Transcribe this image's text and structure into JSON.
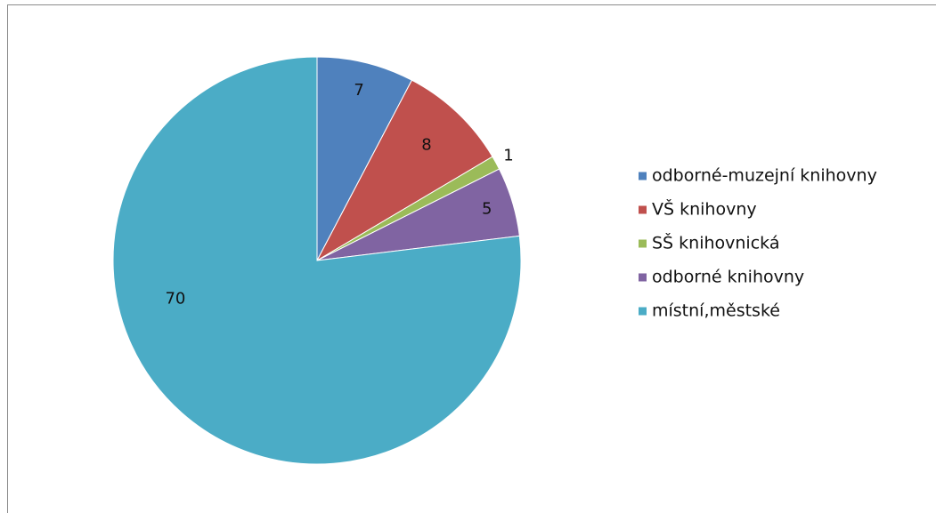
{
  "chart_data": {
    "type": "pie",
    "title": "",
    "legend_position": "right",
    "slices": [
      {
        "label": "odborné-muzejní knihovny",
        "value": 7,
        "data_label": "7",
        "color": "#4f81bd"
      },
      {
        "label": "VŠ knihovny",
        "value": 8,
        "data_label": "8",
        "color": "#c0504d"
      },
      {
        "label": "SŠ knihovnická",
        "value": 1,
        "data_label": "1",
        "color": "#9bbb59"
      },
      {
        "label": "odborné knihovny",
        "value": 5,
        "data_label": "5",
        "color": "#8064a2"
      },
      {
        "label": "místní,městské",
        "value": 70,
        "data_label": "70",
        "color": "#4bacc6"
      }
    ]
  }
}
